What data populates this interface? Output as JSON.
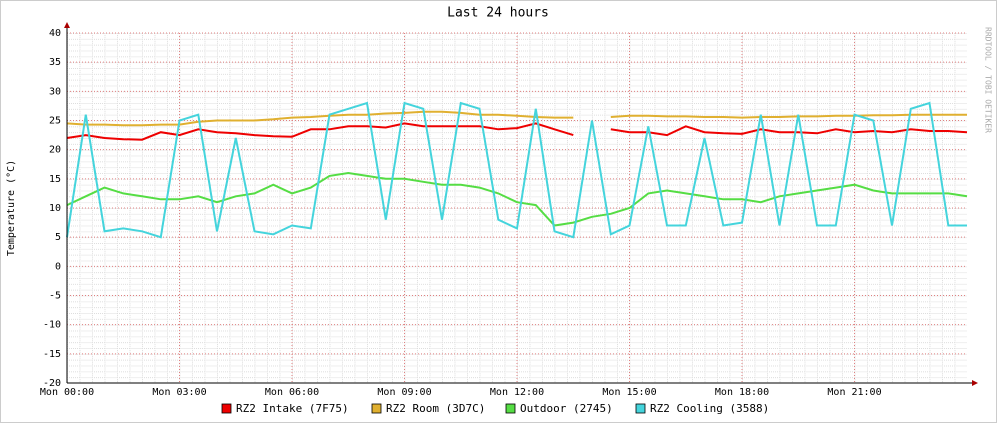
{
  "chart_data": {
    "type": "line",
    "title": "Last 24 hours",
    "ylabel": "Temperature (°C)",
    "watermark": "RRDTOOL / TOBI OETIKER",
    "x": [
      0,
      0.5,
      1,
      1.5,
      2,
      2.5,
      3,
      3.5,
      4,
      4.5,
      5,
      5.5,
      6,
      6.5,
      7,
      7.5,
      8,
      8.5,
      9,
      9.5,
      10,
      10.5,
      11,
      11.5,
      12,
      12.5,
      13,
      13.5,
      14,
      14.5,
      15,
      15.5,
      16,
      16.5,
      17,
      17.5,
      18,
      18.5,
      19,
      19.5,
      20,
      20.5,
      21,
      21.5,
      22,
      22.5,
      23,
      23.5,
      24
    ],
    "series": [
      {
        "name": "RZ2 Intake (7F75)",
        "color": "#ee0000",
        "values": [
          22,
          22.5,
          22,
          21.8,
          21.7,
          23,
          22.5,
          23.5,
          23,
          22.8,
          22.5,
          22.3,
          22.2,
          23.5,
          23.5,
          24,
          24,
          23.8,
          24.5,
          24,
          24,
          24,
          24,
          23.5,
          23.7,
          24.5,
          23.5,
          22.5,
          null,
          23.5,
          23,
          23,
          22.5,
          24,
          23,
          22.8,
          22.7,
          23.5,
          23,
          23,
          22.8,
          23.5,
          23,
          23.2,
          23,
          23.5,
          23.2,
          23.2,
          23
        ]
      },
      {
        "name": "RZ2 Room (3D7C)",
        "color": "#e0b030",
        "values": [
          24.5,
          24.3,
          24.3,
          24.2,
          24.2,
          24.3,
          24.3,
          24.8,
          25,
          25,
          25,
          25.2,
          25.5,
          25.6,
          25.8,
          26,
          26,
          26.2,
          26.3,
          26.5,
          26.5,
          26.3,
          26,
          26,
          25.8,
          25.6,
          25.5,
          25.5,
          null,
          25.6,
          25.8,
          25.8,
          25.7,
          25.7,
          25.6,
          25.6,
          25.5,
          25.6,
          25.6,
          25.7,
          25.7,
          25.8,
          25.8,
          25.9,
          25.9,
          26,
          26,
          26,
          26
        ]
      },
      {
        "name": "Outdoor (2745)",
        "color": "#55dd44",
        "values": [
          10.5,
          12,
          13.5,
          12.5,
          12,
          11.5,
          11.5,
          12,
          11,
          12,
          12.5,
          14,
          12.5,
          13.5,
          15.5,
          16,
          15.5,
          15,
          15,
          14.5,
          14,
          14,
          13.5,
          12.5,
          11,
          10.5,
          7,
          7.5,
          8.5,
          9,
          10,
          12.5,
          13,
          12.5,
          12,
          11.5,
          11.5,
          11,
          12,
          12.5,
          13,
          13.5,
          14,
          13,
          12.5,
          12.5,
          12.5,
          12.5,
          12
        ]
      },
      {
        "name": "RZ2 Cooling (3588)",
        "color": "#44d4dc",
        "values": [
          5,
          26,
          6,
          6.5,
          6,
          5,
          25,
          26,
          6,
          22,
          6,
          5.5,
          7,
          6.5,
          26,
          27,
          28,
          8,
          28,
          27,
          8,
          28,
          27,
          8,
          6.5,
          27,
          6,
          5,
          25,
          5.5,
          7,
          24,
          7,
          7,
          22,
          7,
          7.5,
          26,
          7,
          26,
          7,
          7,
          26,
          25,
          7,
          27,
          28,
          7,
          7
        ]
      }
    ],
    "xlim": [
      0,
      24
    ],
    "xticks": [
      {
        "value": 0,
        "label": "Mon 00:00"
      },
      {
        "value": 3,
        "label": "Mon 03:00"
      },
      {
        "value": 6,
        "label": "Mon 06:00"
      },
      {
        "value": 9,
        "label": "Mon 09:00"
      },
      {
        "value": 12,
        "label": "Mon 12:00"
      },
      {
        "value": 15,
        "label": "Mon 15:00"
      },
      {
        "value": 18,
        "label": "Mon 18:00"
      },
      {
        "value": 21,
        "label": "Mon 21:00"
      }
    ],
    "ylim": [
      -20,
      40
    ],
    "yticks": [
      -20,
      -15,
      -10,
      -5,
      0,
      5,
      10,
      15,
      20,
      25,
      30,
      35,
      40
    ],
    "grid": true
  }
}
